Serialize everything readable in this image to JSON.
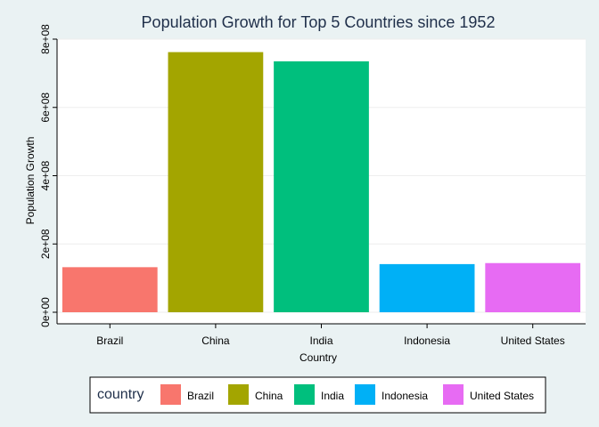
{
  "chart_data": {
    "type": "bar",
    "title": "Population Growth for Top 5 Countries since 1952",
    "xlabel": "Country",
    "ylabel": "Population Growth",
    "categories": [
      "Brazil",
      "China",
      "India",
      "Indonesia",
      "United States"
    ],
    "values": [
      132000000,
      762000000,
      735000000,
      141000000,
      144000000
    ],
    "colors": [
      "#f8766d",
      "#a3a500",
      "#00bf7d",
      "#00b0f6",
      "#e76bf3"
    ],
    "ylim": [
      0,
      800000000
    ],
    "yticks": [
      {
        "value": 0,
        "label": "0e+00"
      },
      {
        "value": 200000000,
        "label": "2e+08"
      },
      {
        "value": 400000000,
        "label": "4e+08"
      },
      {
        "value": 600000000,
        "label": "6e+08"
      },
      {
        "value": 800000000,
        "label": "8e+08"
      }
    ],
    "grid": true,
    "legend": {
      "title": "country",
      "position": "bottom",
      "entries": [
        "Brazil",
        "China",
        "India",
        "Indonesia",
        "United States"
      ]
    }
  },
  "style": {
    "background": "#eaf2f3",
    "panel": "#ffffff",
    "gridline": "#eeeeee"
  }
}
